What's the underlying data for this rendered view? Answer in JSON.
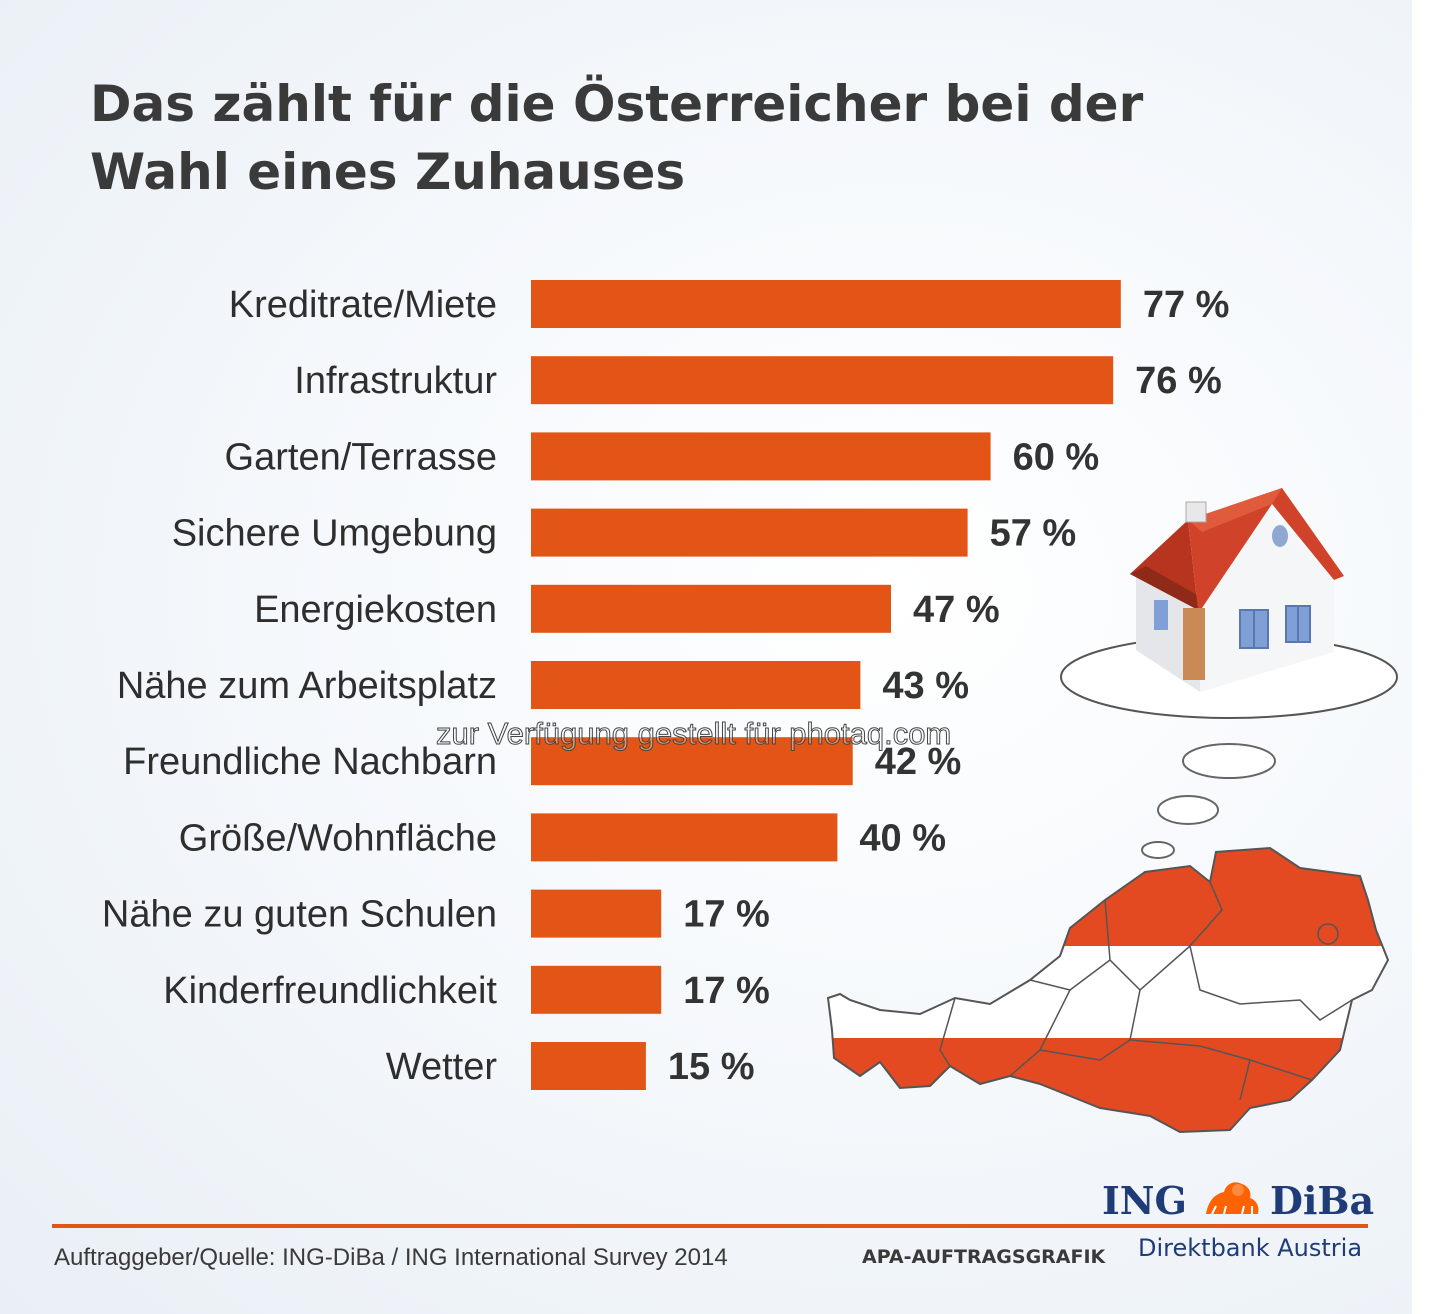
{
  "title": "Das zählt für die Österreicher bei der Wahl eines Zuhauses",
  "chart_data": {
    "type": "bar",
    "orientation": "horizontal",
    "categories": [
      "Kreditrate/Miete",
      "Infrastruktur",
      "Garten/Terrasse",
      "Sichere Umgebung",
      "Energiekosten",
      "Nähe zum Arbeitsplatz",
      "Freundliche Nachbarn",
      "Größe/Wohnfläche",
      "Nähe zu guten Schulen",
      "Kinderfreundlichkeit",
      "Wetter"
    ],
    "values": [
      77,
      76,
      60,
      57,
      47,
      43,
      42,
      40,
      17,
      17,
      15
    ],
    "value_labels": [
      "77 %",
      "76 %",
      "60 %",
      "57 %",
      "47 %",
      "43 %",
      "42 %",
      "40 %",
      "17 %",
      "17 %",
      "15 %"
    ],
    "xlim": [
      0,
      100
    ],
    "grid": false,
    "colors": {
      "bar": "#e35516",
      "text": "#333333"
    }
  },
  "watermark": "zur Verfügung gestellt für photaq.com",
  "footer": {
    "source": "Auftraggeber/Quelle: ING-DiBa / ING International Survey 2014",
    "apa": "APA-AUFTRAGSGRAFIK"
  },
  "brand": {
    "ing": "ING",
    "diba": "DiBa",
    "subline": "Direktbank Austria",
    "logo_icon": "lion-icon",
    "color": "#1f3c78"
  },
  "illustration": {
    "house_icon": "house-icon",
    "map_icon": "austria-map-icon",
    "flag_red": "#e34a22"
  }
}
